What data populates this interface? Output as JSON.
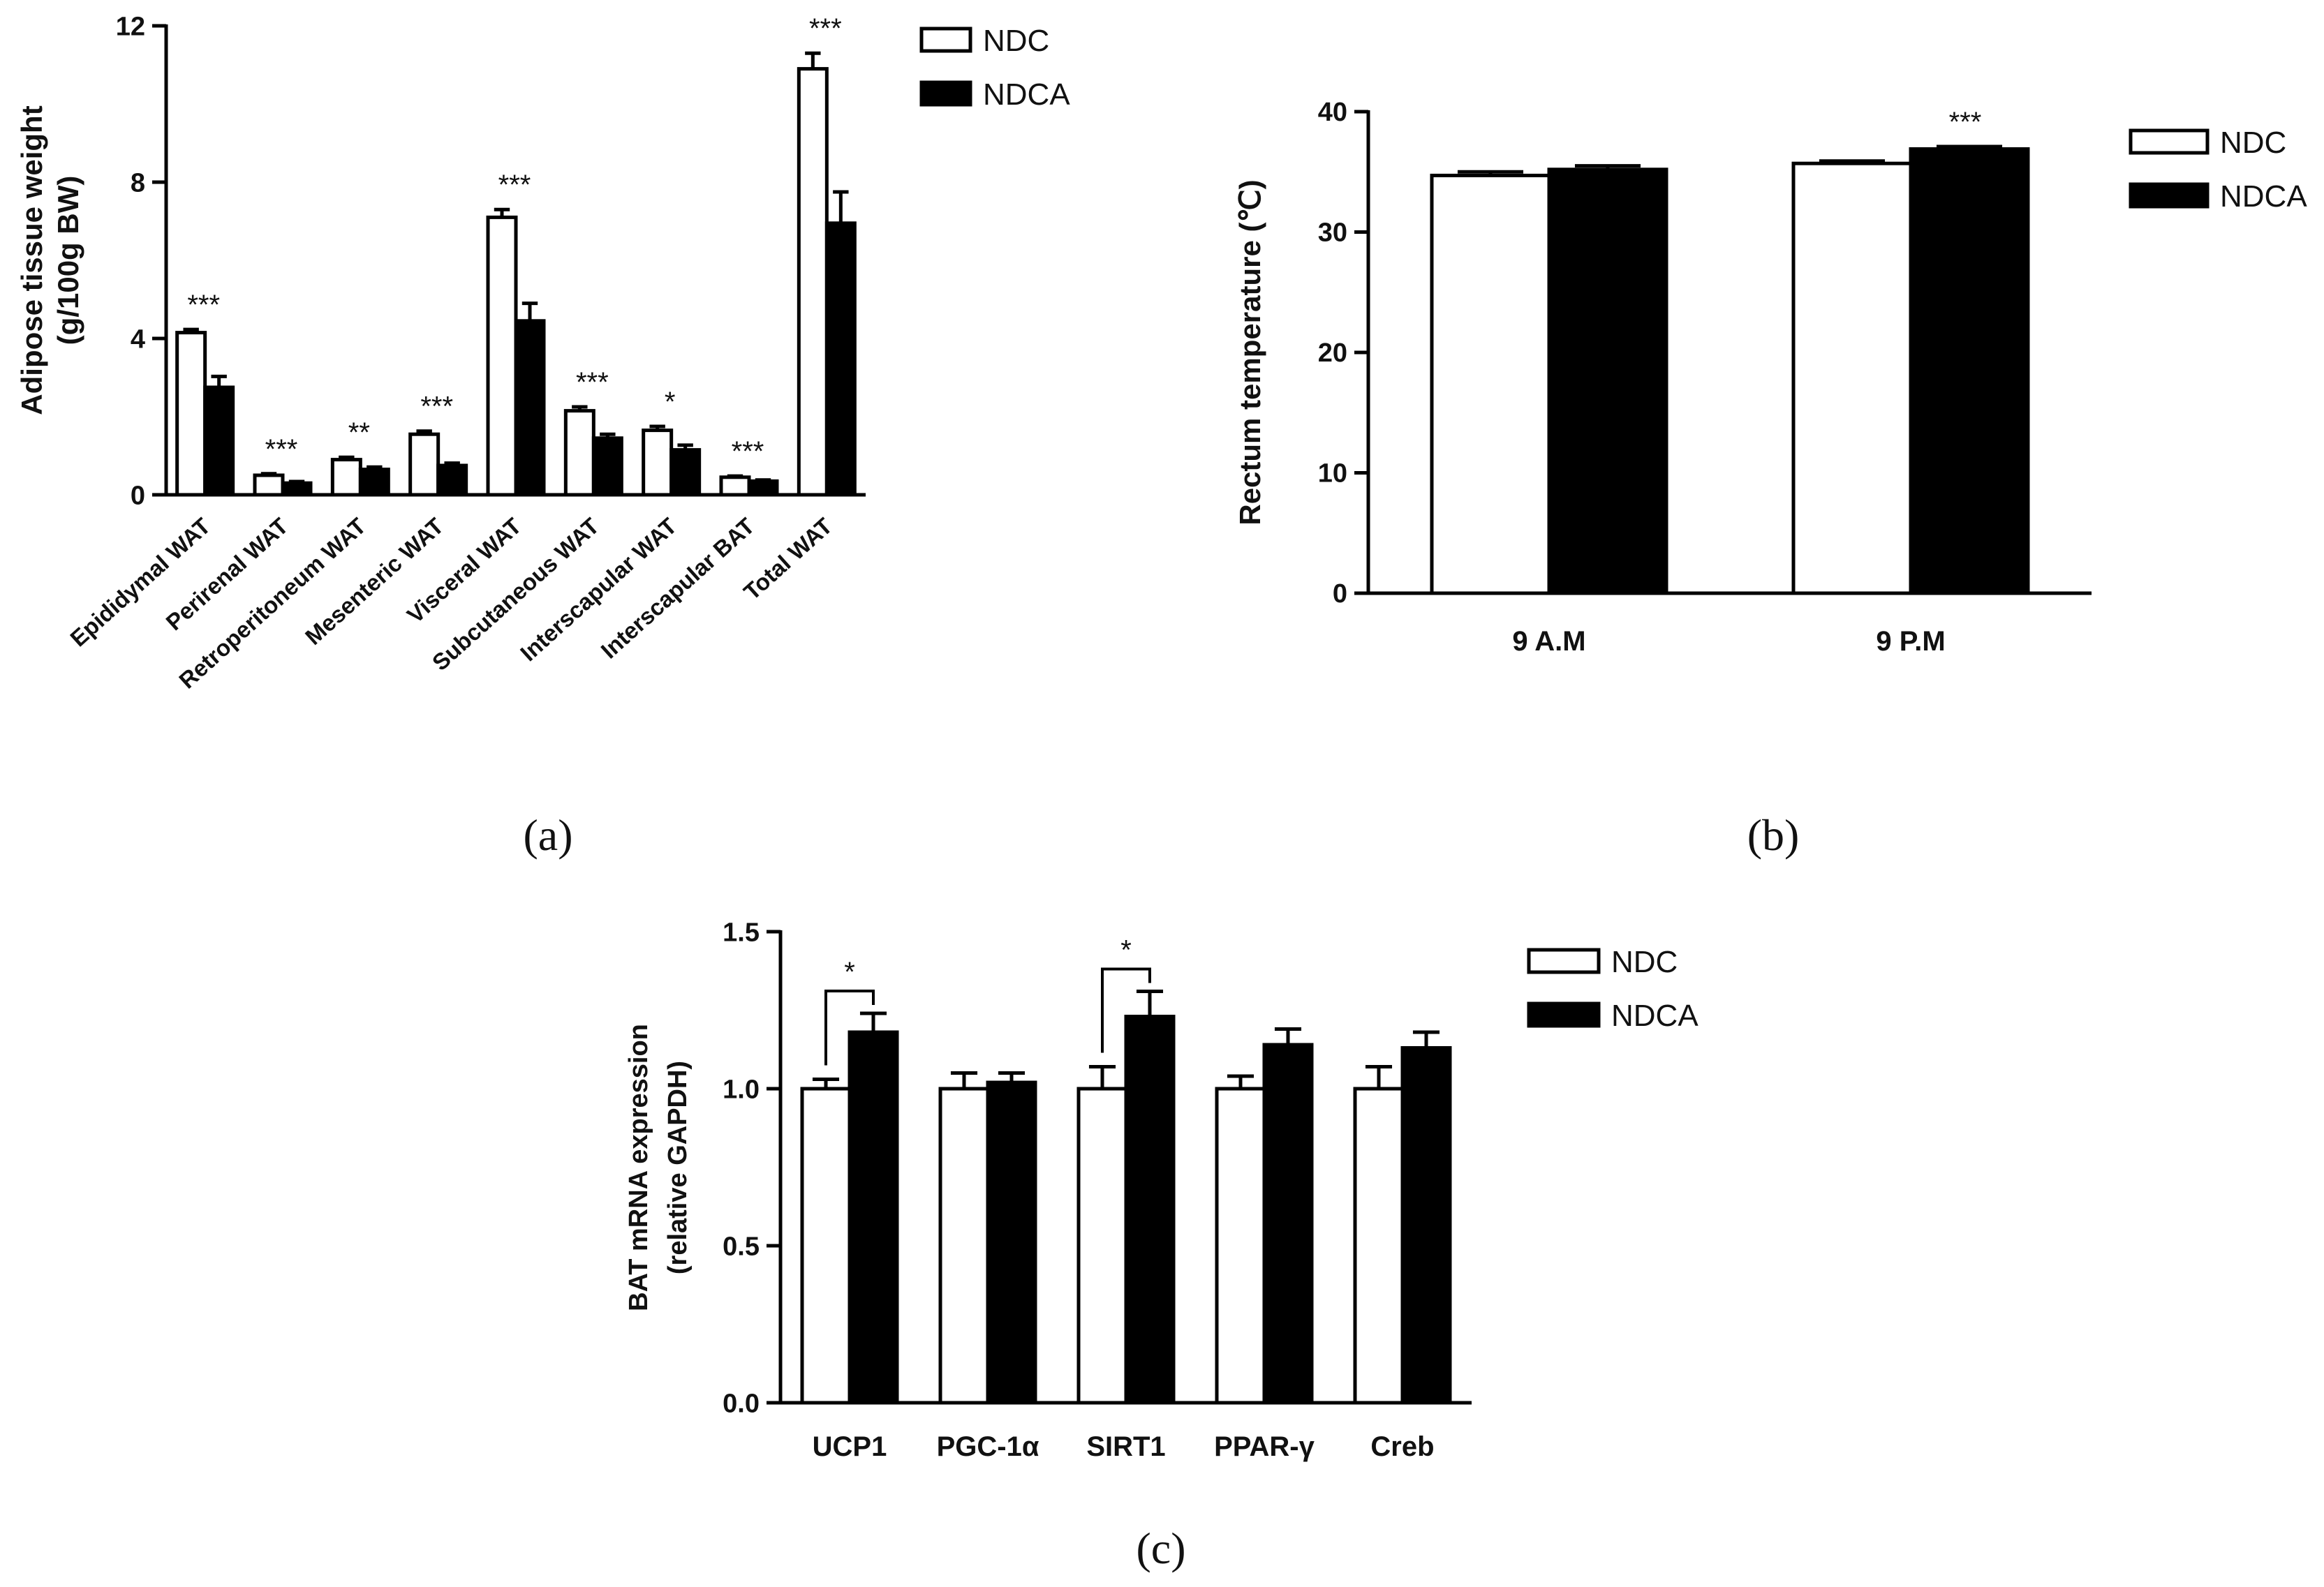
{
  "colors": {
    "ndc": "#ffffff",
    "ndca": "#000000",
    "stroke": "#000000"
  },
  "chart_data": [
    {
      "panel": "(a)",
      "type": "bar",
      "title": "",
      "ylabel": [
        "Adipose tissue weight",
        "(g/100g BW)"
      ],
      "xlabel": "",
      "ylim": [
        0,
        12
      ],
      "yticks": [
        "0",
        "4",
        "8",
        "12"
      ],
      "ytick_values": [
        0,
        4,
        8,
        12
      ],
      "categories": [
        "Epididymal WAT",
        "Perirenal WAT",
        "Retroperitoneum WAT",
        "Mesenteric WAT",
        "Visceral WAT",
        "Subcutaneous WAT",
        "Interscapular WAT",
        "Interscapular BAT",
        "Total WAT"
      ],
      "series": [
        {
          "name": "NDC",
          "values": [
            4.15,
            0.5,
            0.9,
            1.55,
            7.1,
            2.15,
            1.65,
            0.45,
            10.9
          ],
          "errors": [
            0.08,
            0.04,
            0.06,
            0.08,
            0.2,
            0.1,
            0.1,
            0.03,
            0.4
          ]
        },
        {
          "name": "NDCA",
          "values": [
            2.75,
            0.3,
            0.65,
            0.75,
            4.45,
            1.45,
            1.15,
            0.35,
            6.95
          ],
          "errors": [
            0.28,
            0.04,
            0.06,
            0.06,
            0.45,
            0.1,
            0.12,
            0.03,
            0.8
          ]
        }
      ],
      "significance": [
        "***",
        "***",
        "**",
        "***",
        "***",
        "***",
        "*",
        "***",
        "***"
      ],
      "legend": [
        "NDC",
        "NDCA"
      ],
      "legend_position": "top-right"
    },
    {
      "panel": "(b)",
      "type": "bar",
      "title": "",
      "ylabel": [
        "Rectum temperature (℃)"
      ],
      "xlabel": "",
      "ylim": [
        0,
        40
      ],
      "yticks": [
        "0",
        "10",
        "20",
        "30",
        "40"
      ],
      "ytick_values": [
        0,
        10,
        20,
        30,
        40
      ],
      "categories": [
        "9 A.M",
        "9 P.M"
      ],
      "series": [
        {
          "name": "NDC",
          "values": [
            34.7,
            35.7
          ],
          "errors": [
            0.3,
            0.2
          ]
        },
        {
          "name": "NDCA",
          "values": [
            35.2,
            36.9
          ],
          "errors": [
            0.3,
            0.2
          ]
        }
      ],
      "significance": [
        "",
        "***"
      ],
      "legend": [
        "NDC",
        "NDCA"
      ],
      "legend_position": "top-right"
    },
    {
      "panel": "(c)",
      "type": "bar",
      "title": "",
      "ylabel": [
        "BAT mRNA expression",
        "(relative GAPDH)"
      ],
      "xlabel": "",
      "ylim": [
        0,
        1.5
      ],
      "yticks": [
        "0.0",
        "0.5",
        "1.0",
        "1.5"
      ],
      "ytick_values": [
        0,
        0.5,
        1.0,
        1.5
      ],
      "categories": [
        "UCP1",
        "PGC-1α",
        "SIRT1",
        "PPAR-γ",
        "Creb"
      ],
      "series": [
        {
          "name": "NDC",
          "values": [
            1.0,
            1.0,
            1.0,
            1.0,
            1.0
          ],
          "errors": [
            0.03,
            0.05,
            0.07,
            0.04,
            0.07
          ]
        },
        {
          "name": "NDCA",
          "values": [
            1.18,
            1.02,
            1.23,
            1.14,
            1.13
          ],
          "errors": [
            0.06,
            0.03,
            0.08,
            0.05,
            0.05
          ]
        }
      ],
      "significance": [
        "*",
        "",
        "*",
        "",
        ""
      ],
      "legend": [
        "NDC",
        "NDCA"
      ],
      "legend_position": "top-right"
    }
  ]
}
